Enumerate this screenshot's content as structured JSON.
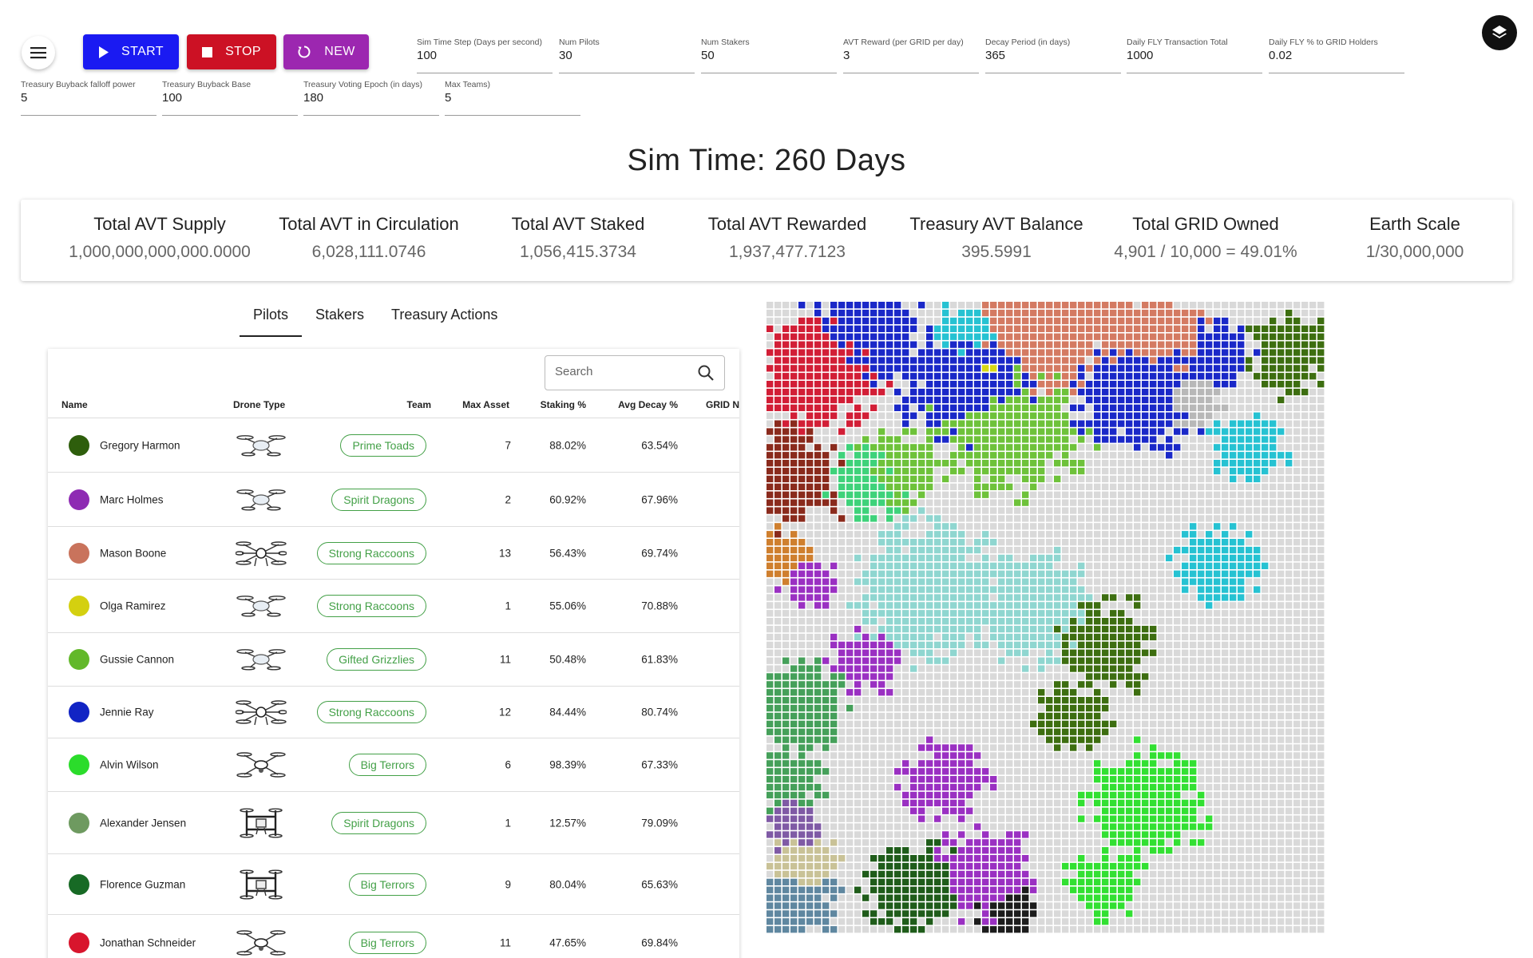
{
  "controls": {
    "start_label": "START",
    "stop_label": "STOP",
    "new_label": "NEW"
  },
  "params": [
    {
      "label": "Sim Time Step (Days per second)",
      "value": "100"
    },
    {
      "label": "Num Pilots",
      "value": "30"
    },
    {
      "label": "Num Stakers",
      "value": "50"
    },
    {
      "label": "AVT Reward (per GRID per day)",
      "value": "3"
    },
    {
      "label": "Decay Period (in days)",
      "value": "365"
    },
    {
      "label": "Daily FLY Transaction Total",
      "value": "1000"
    },
    {
      "label": "Daily FLY % to GRID Holders",
      "value": "0.02"
    },
    {
      "label": "Treasury Buyback falloff power",
      "value": "5"
    },
    {
      "label": "Treasury Buyback Base",
      "value": "100"
    },
    {
      "label": "Treasury Voting Epoch (in days)",
      "value": "180"
    },
    {
      "label": "Max Teams)",
      "value": "5"
    }
  ],
  "sim_time": "Sim Time: 260 Days",
  "stats": [
    {
      "title": "Total AVT Supply",
      "value": "1,000,000,000,000.0000"
    },
    {
      "title": "Total AVT in Circulation",
      "value": "6,028,111.0746"
    },
    {
      "title": "Total AVT Staked",
      "value": "1,056,415.3734"
    },
    {
      "title": "Total AVT Rewarded",
      "value": "1,937,477.7123"
    },
    {
      "title": "Treasury AVT Balance",
      "value": "395.5991"
    },
    {
      "title": "Total GRID Owned",
      "value": "4,901 / 10,000 = 49.01%"
    },
    {
      "title": "Earth Scale",
      "value": "1/30,000,000"
    }
  ],
  "tabs": [
    "Pilots",
    "Stakers",
    "Treasury Actions"
  ],
  "search": {
    "placeholder": "Search"
  },
  "table": {
    "headers": {
      "name": "Name",
      "drone": "Drone Type",
      "team": "Team",
      "max_asset": "Max Asset",
      "staking": "Staking %",
      "decay": "Avg Decay %",
      "grid": "GRID N"
    },
    "rows": [
      {
        "name": "Gregory Harmon",
        "color": "#2e5e0c",
        "drone": "quad",
        "team": "Prime Toads",
        "max_asset": "7",
        "staking": "88.02%",
        "decay": "63.54%"
      },
      {
        "name": "Marc Holmes",
        "color": "#8e2bb3",
        "drone": "quad",
        "team": "Spirit Dragons",
        "max_asset": "2",
        "staking": "60.92%",
        "decay": "67.96%"
      },
      {
        "name": "Mason Boone",
        "color": "#c9735c",
        "drone": "hex",
        "team": "Strong Raccoons",
        "max_asset": "13",
        "staking": "56.43%",
        "decay": "69.74%"
      },
      {
        "name": "Olga Ramirez",
        "color": "#d4d010",
        "drone": "quad",
        "team": "Strong Raccoons",
        "max_asset": "1",
        "staking": "55.06%",
        "decay": "70.88%"
      },
      {
        "name": "Gussie Cannon",
        "color": "#62b82a",
        "drone": "quad",
        "team": "Gifted Grizzlies",
        "max_asset": "11",
        "staking": "50.48%",
        "decay": "61.83%"
      },
      {
        "name": "Jennie Ray",
        "color": "#1124c4",
        "drone": "hex",
        "team": "Strong Raccoons",
        "max_asset": "12",
        "staking": "84.44%",
        "decay": "80.74%"
      },
      {
        "name": "Alvin Wilson",
        "color": "#2bdc2b",
        "drone": "x8",
        "team": "Big Terrors",
        "max_asset": "6",
        "staking": "98.39%",
        "decay": "67.33%"
      },
      {
        "name": "Alexander Jensen",
        "color": "#6e9a60",
        "drone": "frame",
        "team": "Spirit Dragons",
        "max_asset": "1",
        "staking": "12.57%",
        "decay": "79.09%"
      },
      {
        "name": "Florence Guzman",
        "color": "#176a25",
        "drone": "frame",
        "team": "Big Terrors",
        "max_asset": "9",
        "staking": "80.04%",
        "decay": "65.63%"
      },
      {
        "name": "Jonathan Schneider",
        "color": "#d8152d",
        "drone": "x8",
        "team": "Big Terrors",
        "max_asset": "11",
        "staking": "47.65%",
        "decay": "69.84%"
      }
    ]
  },
  "grid_colors": {
    "empty": "#d9d9d9",
    "red": "#d21e36",
    "darkred": "#8a2a1c",
    "salmon": "#d47a62",
    "blue": "#1a28c8",
    "cyan": "#26c2d2",
    "teal": "#8fd6d0",
    "green": "#6ec23a",
    "lime": "#32e032",
    "mint": "#3ed27a",
    "olive": "#3d6e10",
    "purple": "#9a30c2",
    "orange": "#cf7f2e",
    "darkgreen": "#1f5c1a",
    "sea": "#45a05a",
    "slate": "#5f87a0",
    "tan": "#c9c297",
    "gray": "#b8b8b8",
    "yellow": "#d8d814",
    "black": "#1c1c1c",
    "violet": "#7f5aa5"
  }
}
